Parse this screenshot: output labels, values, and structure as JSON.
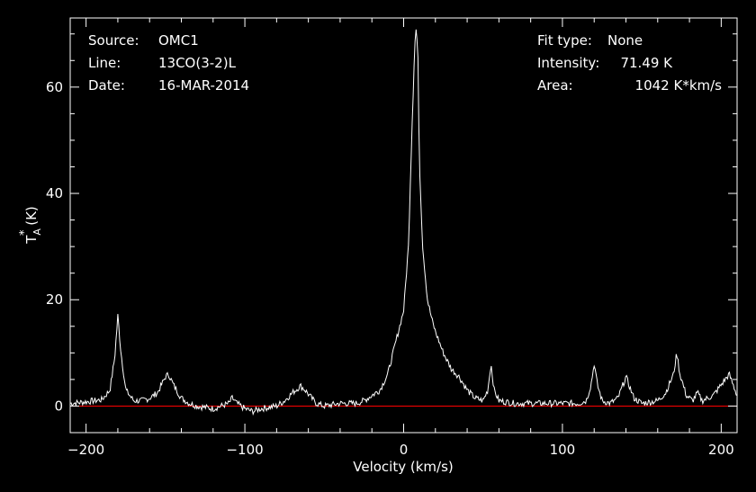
{
  "info": {
    "source_label": "Source:",
    "source_value": "OMC1",
    "line_label": "Line:",
    "line_value": "13CO(3-2)L",
    "date_label": "Date:",
    "date_value": "16-MAR-2014",
    "fit_label": "Fit type:",
    "fit_value": "None",
    "intensity_label": "Intensity:",
    "intensity_value": "71.49 K",
    "area_label": "Area:",
    "area_value": "1042 K*km/s"
  },
  "chart_data": {
    "type": "line",
    "title": "",
    "xlabel": "Velocity (km/s)",
    "ylabel_main": "T",
    "ylabel_sup": "*",
    "ylabel_sub": "A",
    "ylabel_unit": " (K)",
    "xlim": [
      -210,
      210
    ],
    "ylim": [
      -5,
      73
    ],
    "xticks": [
      -200,
      -100,
      0,
      100,
      200
    ],
    "xtick_labels": [
      "−200",
      "−100",
      "0",
      "100",
      "200"
    ],
    "yticks": [
      0,
      20,
      40,
      60
    ],
    "ytick_labels": [
      "0",
      "20",
      "40",
      "60"
    ],
    "baseline": 0,
    "colors": {
      "spectrum": "#ffffff",
      "baseline": "#ff0000",
      "axes": "#ffffff",
      "background": "#000000"
    },
    "series": [
      {
        "x": [
          -210,
          -200,
          -190,
          -185,
          -182,
          -180,
          -178,
          -175,
          -170,
          -165,
          -160,
          -155,
          -150,
          -148,
          -145,
          -140,
          -135,
          -130,
          -120,
          -110,
          -108,
          -105,
          -100,
          -95,
          -90,
          -80,
          -75,
          -70,
          -65,
          -62,
          -58,
          -55,
          -50,
          -40,
          -30,
          -25,
          -20,
          -15,
          -10,
          -5,
          0,
          3,
          5,
          7,
          8,
          9,
          10,
          12,
          15,
          18,
          20,
          25,
          30,
          35,
          40,
          45,
          50,
          53,
          55,
          57,
          60,
          70,
          80,
          90,
          100,
          110,
          115,
          118,
          120,
          122,
          125,
          130,
          135,
          140,
          145,
          150,
          160,
          165,
          170,
          172,
          174,
          178,
          182,
          185,
          188,
          195,
          200,
          205,
          210
        ],
        "y": [
          0.5,
          0.8,
          1.2,
          3,
          9,
          17,
          10,
          3,
          1,
          1,
          1.5,
          2.5,
          5.5,
          6,
          4,
          1.5,
          0.5,
          0,
          -0.5,
          0.5,
          1.5,
          0.5,
          -0.5,
          -1,
          -0.5,
          0,
          1,
          2.5,
          3.8,
          3,
          1.5,
          0.5,
          0,
          0.5,
          0.5,
          1,
          2,
          3,
          6,
          12,
          18,
          30,
          50,
          68,
          71.5,
          65,
          45,
          30,
          20,
          16,
          14,
          10,
          7,
          5.5,
          3,
          1.5,
          1,
          3,
          8,
          3,
          1,
          0.5,
          0.5,
          0.5,
          0.5,
          0.5,
          1,
          4,
          8,
          4,
          1,
          0.5,
          1.5,
          5.5,
          1.5,
          0.5,
          1,
          2.5,
          6,
          10,
          6,
          2,
          1,
          2.5,
          1,
          2,
          4,
          6,
          2
        ]
      }
    ]
  }
}
